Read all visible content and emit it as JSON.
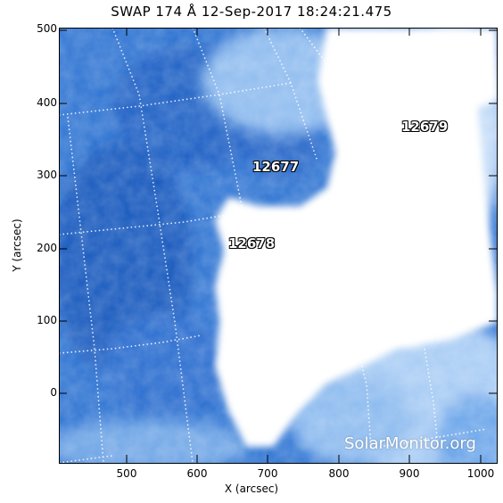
{
  "title": "SWAP 174 Å 12-Sep-2017 18:24:21.475",
  "axes": {
    "xlabel": "X (arcsec)",
    "ylabel": "Y (arcsec)",
    "xticks": [
      "500",
      "600",
      "700",
      "800",
      "900",
      "1000"
    ],
    "yticks": [
      "500",
      "400",
      "300",
      "200",
      "100",
      "0"
    ]
  },
  "regions": [
    {
      "id": "12679",
      "label": "12679"
    },
    {
      "id": "12677",
      "label": "12677"
    },
    {
      "id": "12678",
      "label": "12678"
    }
  ],
  "credit": "SolarMonitor.org",
  "colors": {
    "dark_blue": "#1f64c8",
    "mid_blue": "#4f8fe0",
    "light_blue": "#a9cdf5",
    "white": "#ffffff"
  }
}
